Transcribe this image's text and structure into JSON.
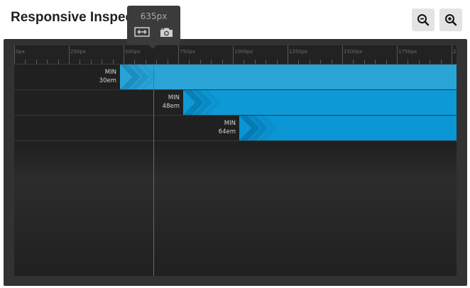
{
  "header": {
    "title": "Responsive Inspect"
  },
  "toolbar": {
    "zoom_out_icon": "zoom-out-icon",
    "zoom_in_icon": "zoom-in-icon"
  },
  "ruler": {
    "labels": [
      "0px",
      "250px",
      "500px",
      "750px",
      "1000px",
      "1250px",
      "1500px",
      "1750px",
      "2"
    ]
  },
  "tooltip": {
    "width_value": "635px",
    "icons": [
      "resize-width-icon",
      "camera-icon"
    ]
  },
  "breakpoints": [
    {
      "type": "MIN",
      "value": "30em"
    },
    {
      "type": "MIN",
      "value": "48em"
    },
    {
      "type": "MIN",
      "value": "64em"
    }
  ],
  "colors": {
    "bar_1": "#2aa4d6",
    "bar_2": "#0d9ad6",
    "bar_3": "#0a95d5",
    "panel": "#323232",
    "inner": "#202020"
  }
}
